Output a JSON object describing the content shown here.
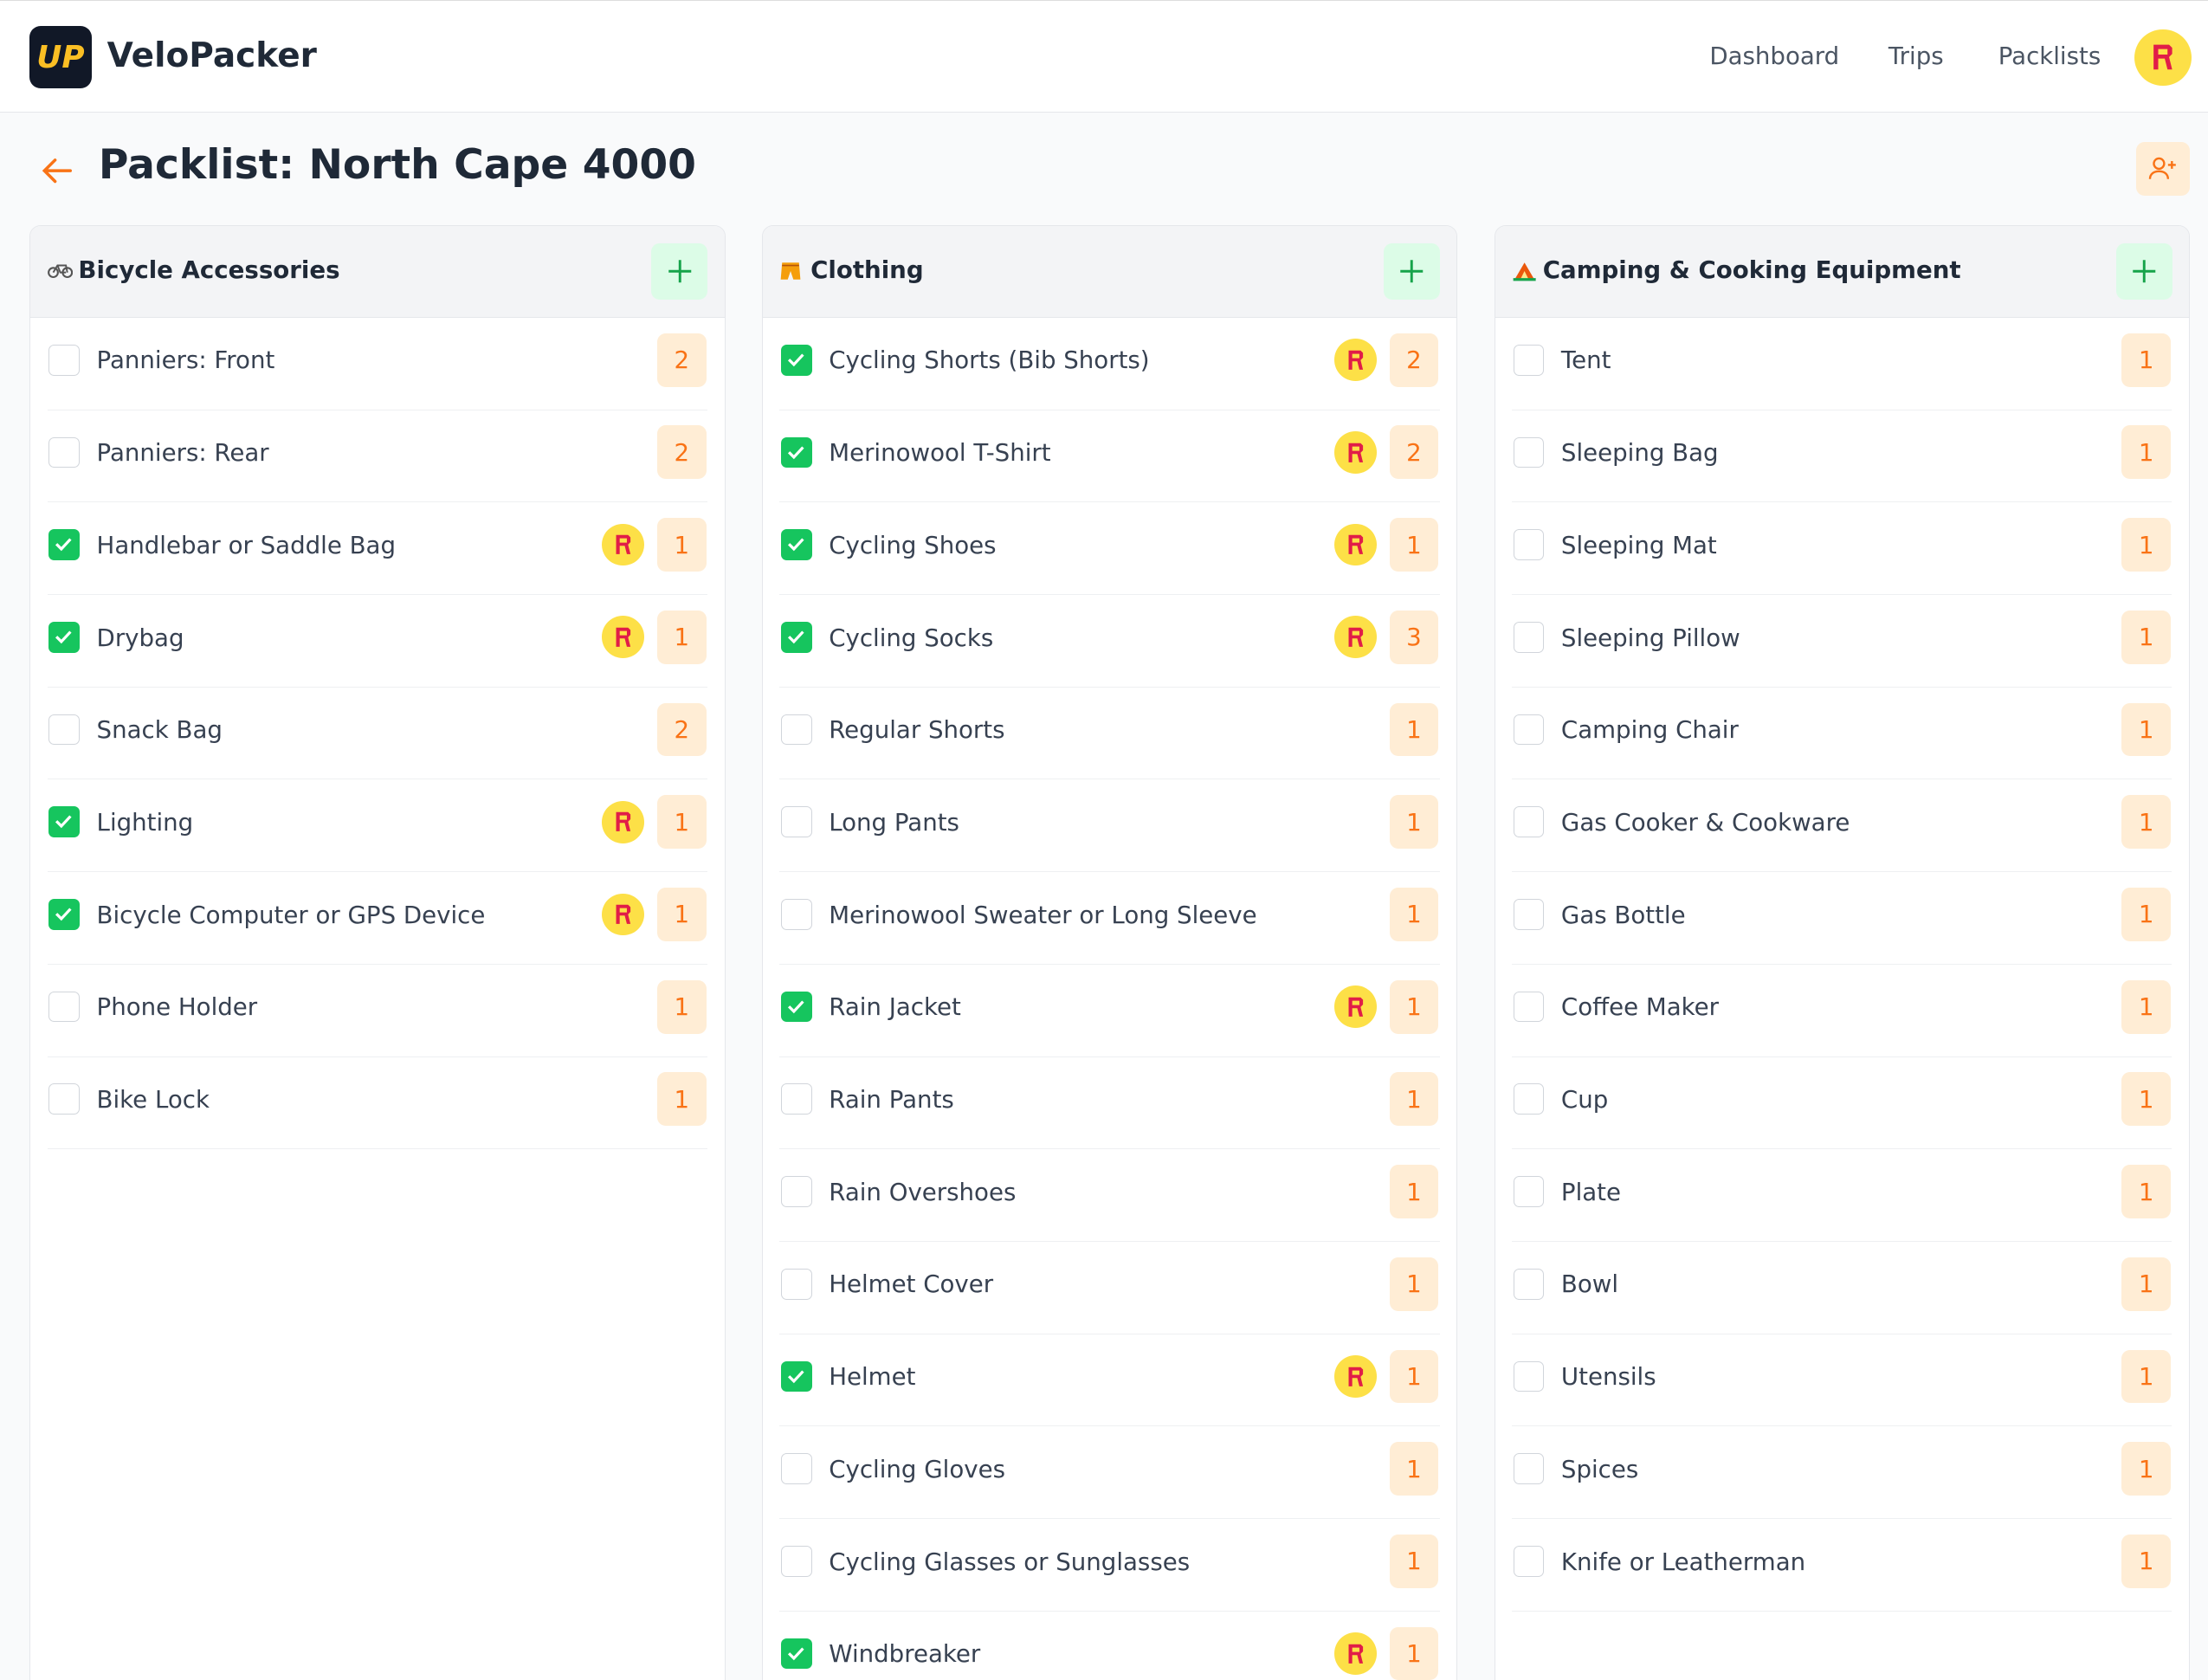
{
  "header": {
    "brand": "VeloPacker",
    "logo": "UP",
    "nav": [
      "Dashboard",
      "Trips",
      "Packlists"
    ]
  },
  "page": {
    "title": "Packlist: North Cape 4000"
  },
  "columns": [
    {
      "title": "Bicycle Accessories",
      "items": [
        {
          "label": "Panniers: Front",
          "quantity": "2",
          "checked": false
        },
        {
          "label": "Panniers: Rear",
          "quantity": "2",
          "checked": false
        },
        {
          "label": "Handlebar or Saddle Bag",
          "quantity": "1",
          "checked": true
        },
        {
          "label": "Drybag",
          "quantity": "1",
          "checked": true
        },
        {
          "label": "Snack Bag",
          "quantity": "2",
          "checked": false
        },
        {
          "label": "Lighting",
          "quantity": "1",
          "checked": true
        },
        {
          "label": "Bicycle Computer or GPS Device",
          "quantity": "1",
          "checked": true
        },
        {
          "label": "Phone Holder",
          "quantity": "1",
          "checked": false
        },
        {
          "label": "Bike Lock",
          "quantity": "1",
          "checked": false
        }
      ]
    },
    {
      "title": "Clothing",
      "items": [
        {
          "label": "Cycling Shorts (Bib Shorts)",
          "quantity": "2",
          "checked": true
        },
        {
          "label": "Merinowool T-Shirt",
          "quantity": "2",
          "checked": true
        },
        {
          "label": "Cycling Shoes",
          "quantity": "1",
          "checked": true
        },
        {
          "label": "Cycling Socks",
          "quantity": "3",
          "checked": true
        },
        {
          "label": "Regular Shorts",
          "quantity": "1",
          "checked": false
        },
        {
          "label": "Long Pants",
          "quantity": "1",
          "checked": false
        },
        {
          "label": "Merinowool Sweater or Long Sleeve",
          "quantity": "1",
          "checked": false
        },
        {
          "label": "Rain Jacket",
          "quantity": "1",
          "checked": true
        },
        {
          "label": "Rain Pants",
          "quantity": "1",
          "checked": false
        },
        {
          "label": "Rain Overshoes",
          "quantity": "1",
          "checked": false
        },
        {
          "label": "Helmet Cover",
          "quantity": "1",
          "checked": false
        },
        {
          "label": "Helmet",
          "quantity": "1",
          "checked": true
        },
        {
          "label": "Cycling Gloves",
          "quantity": "1",
          "checked": false
        },
        {
          "label": "Cycling Glasses or Sunglasses",
          "quantity": "1",
          "checked": false
        },
        {
          "label": "Windbreaker",
          "quantity": "1",
          "checked": true
        }
      ]
    },
    {
      "title": "Camping & Cooking Equipment",
      "items": [
        {
          "label": "Tent",
          "quantity": "1",
          "checked": false
        },
        {
          "label": "Sleeping Bag",
          "quantity": "1",
          "checked": false
        },
        {
          "label": "Sleeping Mat",
          "quantity": "1",
          "checked": false
        },
        {
          "label": "Sleeping Pillow",
          "quantity": "1",
          "checked": false
        },
        {
          "label": "Camping Chair",
          "quantity": "1",
          "checked": false
        },
        {
          "label": "Gas Cooker & Cookware",
          "quantity": "1",
          "checked": false
        },
        {
          "label": "Gas Bottle",
          "quantity": "1",
          "checked": false
        },
        {
          "label": "Coffee Maker",
          "quantity": "1",
          "checked": false
        },
        {
          "label": "Cup",
          "quantity": "1",
          "checked": false
        },
        {
          "label": "Plate",
          "quantity": "1",
          "checked": false
        },
        {
          "label": "Bowl",
          "quantity": "1",
          "checked": false
        },
        {
          "label": "Utensils",
          "quantity": "1",
          "checked": false
        },
        {
          "label": "Spices",
          "quantity": "1",
          "checked": false
        },
        {
          "label": "Knife or Leatherman",
          "quantity": "1",
          "checked": false
        }
      ]
    }
  ]
}
